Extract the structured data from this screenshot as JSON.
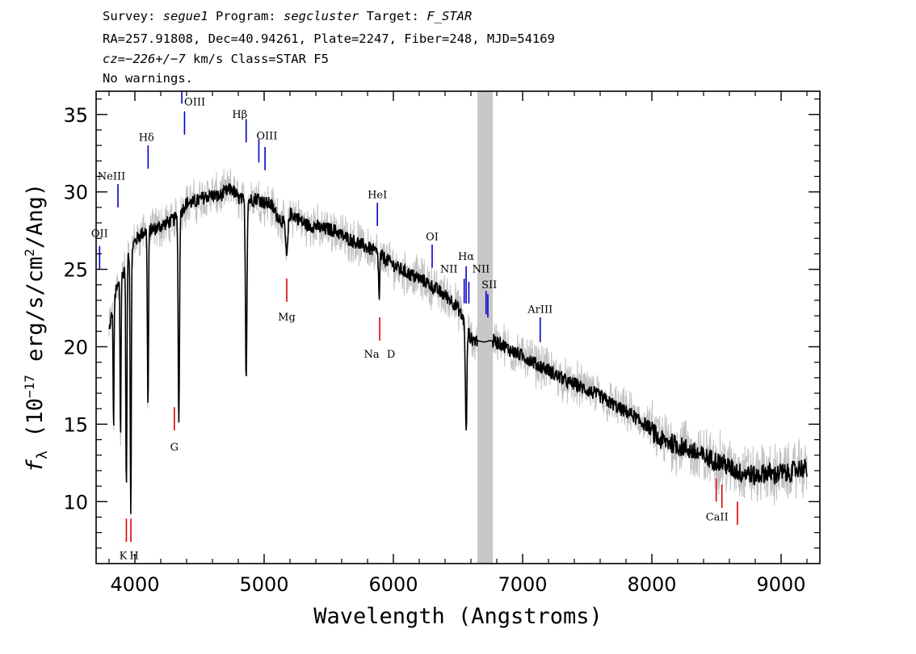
{
  "header": {
    "line1": {
      "survey_key": "Survey: ",
      "survey": "segue1",
      "program_key": " Program: ",
      "program": "segcluster",
      "target_key": " Target: ",
      "target": "F_STAR"
    },
    "line2": "RA=257.91808, Dec=40.94261, Plate=2247, Fiber=248, MJD=54169",
    "line3": {
      "cz_key": "cz=",
      "cz_value": "−226+/−7",
      "rest": " km/s Class=STAR F5"
    },
    "line4": "No warnings."
  },
  "chart_data": {
    "type": "line",
    "xlabel": "Wavelength (Angstroms)",
    "ylabel_parts": [
      "f",
      "λ",
      " (10",
      "−17",
      " erg/s/cm",
      "2",
      "/Ang)"
    ],
    "xlim": [
      3700,
      9300
    ],
    "ylim": [
      6.0,
      36.5
    ],
    "xticks": [
      4000,
      5000,
      6000,
      7000,
      8000,
      9000
    ],
    "yticks": [
      10,
      15,
      20,
      25,
      30,
      35
    ],
    "masked_region": [
      6650,
      6770
    ],
    "colors": {
      "flux": "#000000",
      "error": "#c0c0c0",
      "emission": "#0000cc",
      "absorption": "#dd0000",
      "mask": "#c8c8c8"
    },
    "continuum": [
      [
        3800,
        21.0
      ],
      [
        3850,
        23.5
      ],
      [
        3900,
        24.5
      ],
      [
        3950,
        26.0
      ],
      [
        4000,
        26.8
      ],
      [
        4050,
        27.3
      ],
      [
        4100,
        27.5
      ],
      [
        4150,
        27.6
      ],
      [
        4200,
        27.8
      ],
      [
        4250,
        28.0
      ],
      [
        4300,
        28.2
      ],
      [
        4350,
        28.6
      ],
      [
        4400,
        29.3
      ],
      [
        4450,
        29.3
      ],
      [
        4500,
        29.5
      ],
      [
        4550,
        29.7
      ],
      [
        4600,
        29.8
      ],
      [
        4650,
        29.7
      ],
      [
        4700,
        30.0
      ],
      [
        4750,
        30.2
      ],
      [
        4800,
        29.6
      ],
      [
        4850,
        29.4
      ],
      [
        4900,
        29.5
      ],
      [
        4950,
        29.6
      ],
      [
        5000,
        29.3
      ],
      [
        5050,
        29.2
      ],
      [
        5100,
        28.5
      ],
      [
        5150,
        28.0
      ],
      [
        5200,
        28.6
      ],
      [
        5250,
        28.4
      ],
      [
        5300,
        28.0
      ],
      [
        5350,
        27.8
      ],
      [
        5400,
        27.8
      ],
      [
        5450,
        27.6
      ],
      [
        5500,
        27.6
      ],
      [
        5550,
        27.5
      ],
      [
        5600,
        27.2
      ],
      [
        5650,
        27.0
      ],
      [
        5700,
        26.8
      ],
      [
        5750,
        26.6
      ],
      [
        5800,
        26.4
      ],
      [
        5850,
        26.2
      ],
      [
        5900,
        25.9
      ],
      [
        5950,
        25.6
      ],
      [
        6000,
        25.3
      ],
      [
        6050,
        25.0
      ],
      [
        6100,
        24.8
      ],
      [
        6150,
        24.6
      ],
      [
        6200,
        24.4
      ],
      [
        6250,
        24.2
      ],
      [
        6300,
        23.9
      ],
      [
        6350,
        23.6
      ],
      [
        6400,
        23.3
      ],
      [
        6450,
        23.0
      ],
      [
        6500,
        22.5
      ],
      [
        6550,
        21.6
      ],
      [
        6600,
        20.5
      ],
      [
        6650,
        20.4
      ],
      [
        6700,
        20.3
      ],
      [
        6750,
        20.4
      ],
      [
        6800,
        20.3
      ],
      [
        6850,
        20.1
      ],
      [
        6900,
        19.8
      ],
      [
        6950,
        19.6
      ],
      [
        7000,
        19.4
      ],
      [
        7050,
        19.2
      ],
      [
        7100,
        18.9
      ],
      [
        7150,
        18.7
      ],
      [
        7200,
        18.5
      ],
      [
        7250,
        18.2
      ],
      [
        7300,
        18.0
      ],
      [
        7350,
        17.7
      ],
      [
        7400,
        17.6
      ],
      [
        7450,
        17.4
      ],
      [
        7500,
        17.2
      ],
      [
        7550,
        17.0
      ],
      [
        7600,
        16.8
      ],
      [
        7650,
        16.5
      ],
      [
        7700,
        16.3
      ],
      [
        7750,
        16.0
      ],
      [
        7800,
        15.8
      ],
      [
        7850,
        15.6
      ],
      [
        7900,
        15.2
      ],
      [
        7950,
        15.0
      ],
      [
        8000,
        14.6
      ],
      [
        8050,
        14.0
      ],
      [
        8100,
        13.9
      ],
      [
        8150,
        13.8
      ],
      [
        8200,
        13.6
      ],
      [
        8250,
        13.5
      ],
      [
        8300,
        13.3
      ],
      [
        8350,
        13.1
      ],
      [
        8400,
        12.9
      ],
      [
        8450,
        12.8
      ],
      [
        8500,
        12.6
      ],
      [
        8550,
        12.5
      ],
      [
        8600,
        12.2
      ],
      [
        8650,
        12.0
      ],
      [
        8700,
        11.8
      ],
      [
        8750,
        11.9
      ],
      [
        8800,
        11.6
      ],
      [
        8850,
        11.8
      ],
      [
        8900,
        11.9
      ],
      [
        8950,
        11.7
      ],
      [
        9000,
        11.9
      ],
      [
        9050,
        11.8
      ],
      [
        9100,
        12.0
      ],
      [
        9150,
        12.2
      ],
      [
        9200,
        12.1
      ]
    ],
    "absorption_dips": [
      {
        "x": 3835,
        "depth": 8.0,
        "w": 5
      },
      {
        "x": 3889,
        "depth": 10.0,
        "w": 5
      },
      {
        "x": 3934,
        "depth": 15.0,
        "w": 6
      },
      {
        "x": 3968,
        "depth": 17.0,
        "w": 6
      },
      {
        "x": 4101,
        "depth": 11.5,
        "w": 6
      },
      {
        "x": 4340,
        "depth": 13.5,
        "w": 7
      },
      {
        "x": 4861,
        "depth": 11.3,
        "w": 8
      },
      {
        "x": 5175,
        "depth": 2.5,
        "w": 12
      },
      {
        "x": 5890,
        "depth": 3.0,
        "w": 6
      },
      {
        "x": 6563,
        "depth": 7.0,
        "w": 8
      }
    ],
    "emission_lines": [
      {
        "label": "OII",
        "x": 3727,
        "y0": 25.0,
        "y1": 26.5,
        "label_y": 27.3
      },
      {
        "label": "NeIII",
        "x": 3869,
        "y0": 29.0,
        "y1": 30.5,
        "label_y": 31.0
      },
      {
        "label": "Hδ",
        "x": 4102,
        "y0": 31.5,
        "y1": 33.0,
        "label_y": 33.5
      },
      {
        "label": "OIII",
        "x": 4363,
        "y0": 35.7,
        "y1": 37.0,
        "label_y": 35.8
      },
      {
        "label": "OIII",
        "x": 4384,
        "y0": 33.7,
        "y1": 35.2,
        "label_y": 35.8
      },
      {
        "label": "Hβ",
        "x": 4861,
        "y0": 33.2,
        "y1": 34.7,
        "label_y": 35.0
      },
      {
        "label": "OIII",
        "x": 4959,
        "y0": 31.9,
        "y1": 33.4,
        "label_y": 33.6
      },
      {
        "label": "OIII",
        "x": 5007,
        "y0": 31.4,
        "y1": 32.9,
        "label_y": 33.6
      },
      {
        "label": "HeI",
        "x": 5876,
        "y0": 27.8,
        "y1": 29.3,
        "label_y": 29.8
      },
      {
        "label": "OI",
        "x": 6300,
        "y0": 25.1,
        "y1": 26.6,
        "label_y": 27.1
      },
      {
        "label": "NII",
        "x": 6548,
        "y0": 22.8,
        "y1": 24.4,
        "label_y": 25.0
      },
      {
        "label": "Hα",
        "x": 6563,
        "y0": 22.8,
        "y1": 25.2,
        "label_y": 25.8
      },
      {
        "label": "NII",
        "x": 6584,
        "y0": 22.8,
        "y1": 24.2,
        "label_y": 25.0
      },
      {
        "label": "SII",
        "x": 6717,
        "y0": 22.1,
        "y1": 23.6,
        "label_y": 24.0
      },
      {
        "label": "SII",
        "x": 6731,
        "y0": 21.9,
        "y1": 23.4,
        "label_y": 24.0
      },
      {
        "label": "ArIII",
        "x": 7136,
        "y0": 20.3,
        "y1": 21.9,
        "label_y": 22.4
      }
    ],
    "absorption_lines": [
      {
        "label": "K",
        "x": 3934,
        "y0": 7.4,
        "y1": 8.9,
        "label_y": 6.5
      },
      {
        "label": "H",
        "x": 3969,
        "y0": 7.4,
        "y1": 8.9,
        "label_y": 6.5
      },
      {
        "label": "G",
        "x": 4305,
        "y0": 14.6,
        "y1": 16.1,
        "label_y": 13.5
      },
      {
        "label": "Mg",
        "x": 5175,
        "y0": 22.9,
        "y1": 24.4,
        "label_y": 21.9
      },
      {
        "label": "Na",
        "x": 5894,
        "y0": 20.4,
        "y1": 21.9,
        "label_y": 19.5
      },
      {
        "label": "D",
        "x": 5894,
        "y0": 20.4,
        "y1": 20.4,
        "label_y": 19.5
      },
      {
        "label": "CaII",
        "x": 8498,
        "y0": 10.0,
        "y1": 11.5,
        "label_y": 9.0
      },
      {
        "label": "CaII",
        "x": 8542,
        "y0": 9.6,
        "y1": 11.1,
        "label_y": 9.0
      },
      {
        "label": "CaII",
        "x": 8662,
        "y0": 8.5,
        "y1": 10.0,
        "label_y": 9.0
      }
    ]
  }
}
